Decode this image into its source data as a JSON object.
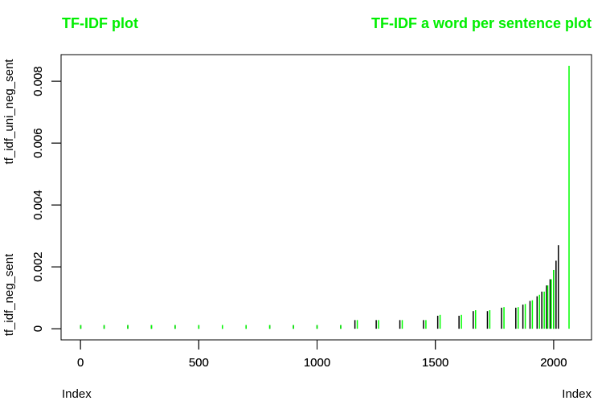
{
  "chart_data": [
    {
      "type": "stem",
      "title": "TF-IDF plot",
      "x_label": "Index",
      "y_label": "tf_idf_neg_sent",
      "color": "#000000",
      "x": [
        1,
        100,
        200,
        300,
        400,
        500,
        600,
        700,
        800,
        900,
        1000,
        1100,
        1160,
        1250,
        1350,
        1450,
        1510,
        1600,
        1660,
        1720,
        1780,
        1840,
        1870,
        1900,
        1930,
        1950,
        1970,
        1985,
        2000,
        2010,
        2020
      ],
      "values": [
        0.00012,
        0.00012,
        0.00012,
        0.00012,
        0.00012,
        0.00012,
        0.00012,
        0.00012,
        0.00012,
        0.00012,
        0.00012,
        0.00012,
        0.00028,
        0.00028,
        0.00028,
        0.00028,
        0.00042,
        0.00042,
        0.00057,
        0.00057,
        0.00068,
        0.00068,
        0.00078,
        0.0009,
        0.00105,
        0.0012,
        0.0014,
        0.0016,
        0.0019,
        0.0022,
        0.0027
      ],
      "xlim": [
        -82,
        2160
      ],
      "xticks": [
        0,
        500,
        1000,
        1500,
        2000
      ],
      "ylim": [
        -0.00036,
        0.00886
      ],
      "yticks": [
        0,
        0.002,
        0.004,
        0.006,
        0.008
      ]
    },
    {
      "type": "stem",
      "title": "TF-IDF a word per sentence plot",
      "x_label": "Index",
      "y_label": "tf_idf_uni_neg_sent",
      "color": "#00ff00",
      "x": [
        1,
        100,
        200,
        300,
        400,
        500,
        600,
        700,
        800,
        900,
        1000,
        1100,
        1170,
        1260,
        1360,
        1460,
        1520,
        1610,
        1670,
        1730,
        1790,
        1850,
        1880,
        1910,
        1940,
        1960,
        1975,
        1990,
        2000,
        2065
      ],
      "values": [
        0.00012,
        0.00012,
        0.00012,
        0.00012,
        0.00012,
        0.00012,
        0.00012,
        0.00012,
        0.00012,
        0.00012,
        0.00012,
        0.00012,
        0.00028,
        0.00028,
        0.00028,
        0.00028,
        0.00045,
        0.00045,
        0.0006,
        0.0006,
        0.0007,
        0.0007,
        0.0008,
        0.00092,
        0.0011,
        0.0012,
        0.0014,
        0.0016,
        0.0019,
        0.0085
      ],
      "xlim": [
        -82,
        2160
      ],
      "xticks": [
        0,
        500,
        1000,
        1500,
        2000
      ],
      "ylim": [
        -0.00036,
        0.00886
      ],
      "yticks": [
        0,
        0.002,
        0.004,
        0.006,
        0.008
      ]
    }
  ]
}
